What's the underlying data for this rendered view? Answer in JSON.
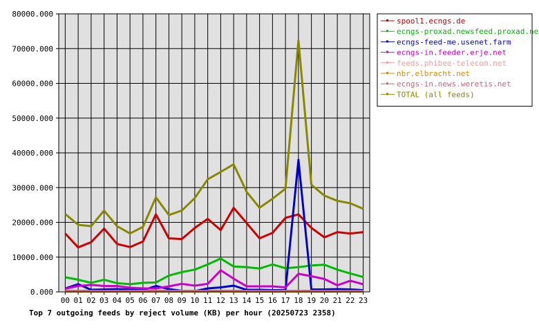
{
  "chart_data": {
    "type": "line",
    "title": "Top 7 outgoing feeds by reject volume (KB) per hour (20250723 2358)",
    "xlabel": "",
    "ylabel": "",
    "categories": [
      "00",
      "01",
      "02",
      "03",
      "04",
      "05",
      "06",
      "07",
      "08",
      "09",
      "10",
      "11",
      "12",
      "13",
      "14",
      "15",
      "16",
      "17",
      "18",
      "19",
      "20",
      "21",
      "22",
      "23"
    ],
    "ylim": [
      0,
      80000
    ],
    "yticks": [
      "0.000",
      "10000.000",
      "20000.000",
      "30000.000",
      "40000.000",
      "50000.000",
      "60000.000",
      "70000.000",
      "80000.000"
    ],
    "ytick_values": [
      0,
      10000,
      20000,
      30000,
      40000,
      50000,
      60000,
      70000,
      80000
    ],
    "grid": true,
    "legend_position": "right",
    "plot_background": "#e0e0e0",
    "series": [
      {
        "name": "spool1.ecngs.de",
        "color": "#cc0000",
        "values": [
          16800,
          12800,
          14300,
          18200,
          13800,
          12900,
          14500,
          22300,
          15400,
          15200,
          18400,
          21000,
          17800,
          24200,
          19800,
          15400,
          17000,
          21300,
          22300,
          18400,
          15700,
          17200,
          16800,
          17200
        ]
      },
      {
        "name": "ecngs-proxad.newsfeed.proxad.net",
        "color": "#00bb00",
        "values": [
          4200,
          3500,
          2600,
          3500,
          2500,
          2200,
          2600,
          2700,
          4700,
          5700,
          6400,
          7900,
          9600,
          7300,
          7100,
          6700,
          7900,
          6800,
          7100,
          7600,
          7800,
          6400,
          5300,
          4300
        ]
      },
      {
        "name": "ecngs-feed-me.usenet.farm",
        "color": "#0000cc",
        "values": [
          1000,
          2200,
          600,
          700,
          800,
          700,
          500,
          1700,
          800,
          300,
          200,
          1000,
          1300,
          1800,
          600,
          600,
          500,
          500,
          38000,
          700,
          700,
          800,
          700,
          500
        ]
      },
      {
        "name": "ecngs-in.feeder.erje.net",
        "color": "#cc00cc",
        "values": [
          900,
          1700,
          2000,
          1700,
          1700,
          1200,
          1000,
          1000,
          1600,
          2300,
          1800,
          2300,
          6200,
          3800,
          1600,
          1600,
          1600,
          1300,
          5200,
          4500,
          3700,
          1900,
          3200,
          2200
        ]
      },
      {
        "name": "feeds.phibee-telecom.net",
        "color": "#ff9999",
        "values": [
          200,
          200,
          200,
          200,
          200,
          200,
          200,
          200,
          200,
          200,
          200,
          200,
          200,
          200,
          200,
          200,
          200,
          200,
          200,
          200,
          200,
          200,
          200,
          200
        ]
      },
      {
        "name": "nbr.elbracht.net",
        "color": "#dd8800",
        "values": [
          100,
          100,
          100,
          100,
          100,
          100,
          100,
          100,
          100,
          100,
          100,
          100,
          100,
          100,
          100,
          100,
          100,
          100,
          100,
          100,
          100,
          100,
          100,
          100
        ]
      },
      {
        "name": "ecngs-in.news.weretis.net",
        "color": "#cc6677",
        "values": [
          300,
          300,
          300,
          300,
          300,
          300,
          300,
          300,
          300,
          300,
          300,
          300,
          300,
          300,
          300,
          300,
          300,
          300,
          300,
          300,
          300,
          300,
          300,
          300
        ]
      },
      {
        "name": "TOTAL (all feeds)",
        "color": "#888800",
        "values": [
          22400,
          19300,
          18900,
          23400,
          18900,
          16800,
          18700,
          27200,
          22100,
          23400,
          27000,
          32400,
          34500,
          36700,
          28800,
          24200,
          26800,
          29700,
          72400,
          30800,
          27700,
          26200,
          25500,
          23900
        ]
      }
    ]
  }
}
